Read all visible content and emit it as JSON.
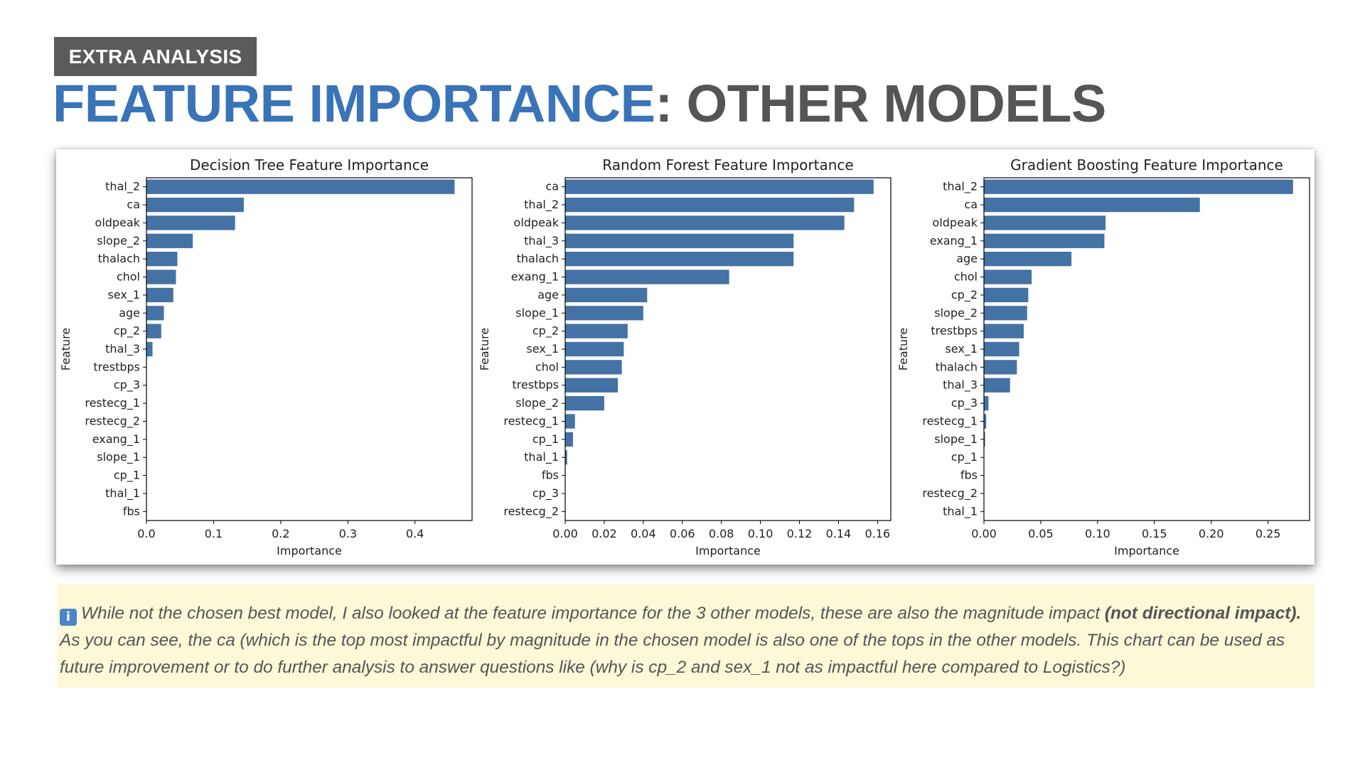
{
  "header": {
    "tag": "EXTRA ANALYSIS",
    "title_highlight": "FEATURE IMPORTANCE",
    "title_rest": ": OTHER MODELS"
  },
  "colors": {
    "accent": "#3a74b8",
    "bar": "#4472a4",
    "tag_bg": "#5b5b5b",
    "note_bg": "#fbf9d8"
  },
  "chart_data": [
    {
      "type": "bar",
      "orientation": "horizontal",
      "title": "Decision Tree Feature Importance",
      "xlabel": "Importance",
      "ylabel": "Feature",
      "xlim": [
        0,
        0.485
      ],
      "xticks": [
        0,
        0.1,
        0.2,
        0.3,
        0.4
      ],
      "xtick_labels": [
        "0.0",
        "0.1",
        "0.2",
        "0.3",
        "0.4"
      ],
      "categories": [
        "thal_2",
        "ca",
        "oldpeak",
        "slope_2",
        "thalach",
        "chol",
        "sex_1",
        "age",
        "cp_2",
        "thal_3",
        "trestbps",
        "cp_3",
        "restecg_1",
        "restecg_2",
        "exang_1",
        "slope_1",
        "cp_1",
        "thal_1",
        "fbs"
      ],
      "values": [
        0.459,
        0.145,
        0.132,
        0.069,
        0.046,
        0.044,
        0.04,
        0.026,
        0.022,
        0.009,
        0,
        0,
        0,
        0,
        0,
        0,
        0,
        0,
        0
      ]
    },
    {
      "type": "bar",
      "orientation": "horizontal",
      "title": "Random Forest Feature Importance",
      "xlabel": "Importance",
      "ylabel": "Feature",
      "xlim": [
        0,
        0.1668
      ],
      "xticks": [
        0,
        0.02,
        0.04,
        0.06,
        0.08,
        0.1,
        0.12,
        0.14,
        0.16
      ],
      "xtick_labels": [
        "0.00",
        "0.02",
        "0.04",
        "0.06",
        "0.08",
        "0.10",
        "0.12",
        "0.14",
        "0.16"
      ],
      "categories": [
        "ca",
        "thal_2",
        "oldpeak",
        "thal_3",
        "thalach",
        "exang_1",
        "age",
        "slope_1",
        "cp_2",
        "sex_1",
        "chol",
        "trestbps",
        "slope_2",
        "restecg_1",
        "cp_1",
        "thal_1",
        "fbs",
        "cp_3",
        "restecg_2"
      ],
      "values": [
        0.158,
        0.148,
        0.143,
        0.117,
        0.117,
        0.084,
        0.042,
        0.04,
        0.032,
        0.03,
        0.029,
        0.027,
        0.02,
        0.005,
        0.004,
        0.001,
        0,
        0,
        0
      ]
    },
    {
      "type": "bar",
      "orientation": "horizontal",
      "title": "Gradient Boosting Feature Importance",
      "xlabel": "Importance",
      "ylabel": "Feature",
      "xlim": [
        0,
        0.2865
      ],
      "xticks": [
        0,
        0.05,
        0.1,
        0.15,
        0.2,
        0.25
      ],
      "xtick_labels": [
        "0.00",
        "0.05",
        "0.10",
        "0.15",
        "0.20",
        "0.25"
      ],
      "categories": [
        "thal_2",
        "ca",
        "oldpeak",
        "exang_1",
        "age",
        "chol",
        "cp_2",
        "slope_2",
        "trestbps",
        "sex_1",
        "thalach",
        "thal_3",
        "cp_3",
        "restecg_1",
        "slope_1",
        "cp_1",
        "fbs",
        "restecg_2",
        "thal_1"
      ],
      "values": [
        0.272,
        0.19,
        0.107,
        0.106,
        0.077,
        0.042,
        0.039,
        0.038,
        0.035,
        0.031,
        0.029,
        0.023,
        0.004,
        0.002,
        0.001,
        0,
        0,
        0,
        0
      ]
    }
  ],
  "note": {
    "text_1": "While not the chosen best model, I also looked at the feature importance for the 3 other models, these are also the magnitude impact ",
    "bold": "(not directional impact).",
    "text_2": " As you can see, the ca (which is the top most impactful by magnitude in the chosen model is also one of the tops in the other models. This chart can be used as future improvement or to do further analysis to answer questions like (why is cp_2 and sex_1 not as impactful here compared to Logistics?)"
  }
}
